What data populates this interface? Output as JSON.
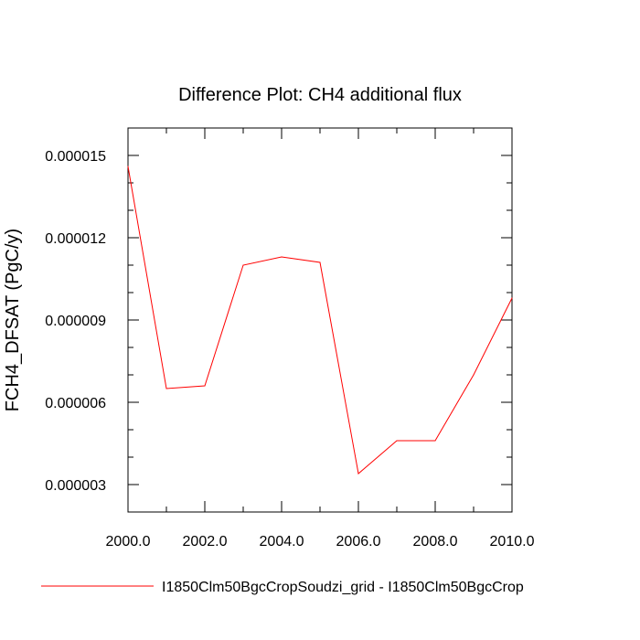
{
  "chart_data": {
    "type": "line",
    "title": "Difference Plot: CH4 additional flux",
    "xlabel": "",
    "ylabel": "FCH4_DFSAT  (PgC/y)",
    "xlim": [
      2000,
      2010
    ],
    "ylim": [
      2e-06,
      1.6e-05
    ],
    "x_ticks": [
      2000,
      2002,
      2004,
      2006,
      2008,
      2010
    ],
    "x_tick_labels": [
      "2000.0",
      "2002.0",
      "2004.0",
      "2006.0",
      "2008.0",
      "2010.0"
    ],
    "y_ticks": [
      3e-06,
      6e-06,
      9e-06,
      1.2e-05,
      1.5e-05
    ],
    "y_tick_labels": [
      "0.000003",
      "0.000006",
      "0.000009",
      "0.000012",
      "0.000015"
    ],
    "grid": false,
    "legend_position": "bottom",
    "series": [
      {
        "name": "I1850Clm50BgcCropSoudzi_grid - I1850Clm50BgcCrop",
        "color": "#ff0000",
        "x": [
          2000,
          2001,
          2002,
          2003,
          2004,
          2005,
          2006,
          2007,
          2008,
          2009,
          2010
        ],
        "y": [
          1.46e-05,
          6.5e-06,
          6.6e-06,
          1.1e-05,
          1.13e-05,
          1.11e-05,
          3.4e-06,
          4.6e-06,
          4.6e-06,
          7e-06,
          9.8e-06
        ]
      }
    ]
  }
}
